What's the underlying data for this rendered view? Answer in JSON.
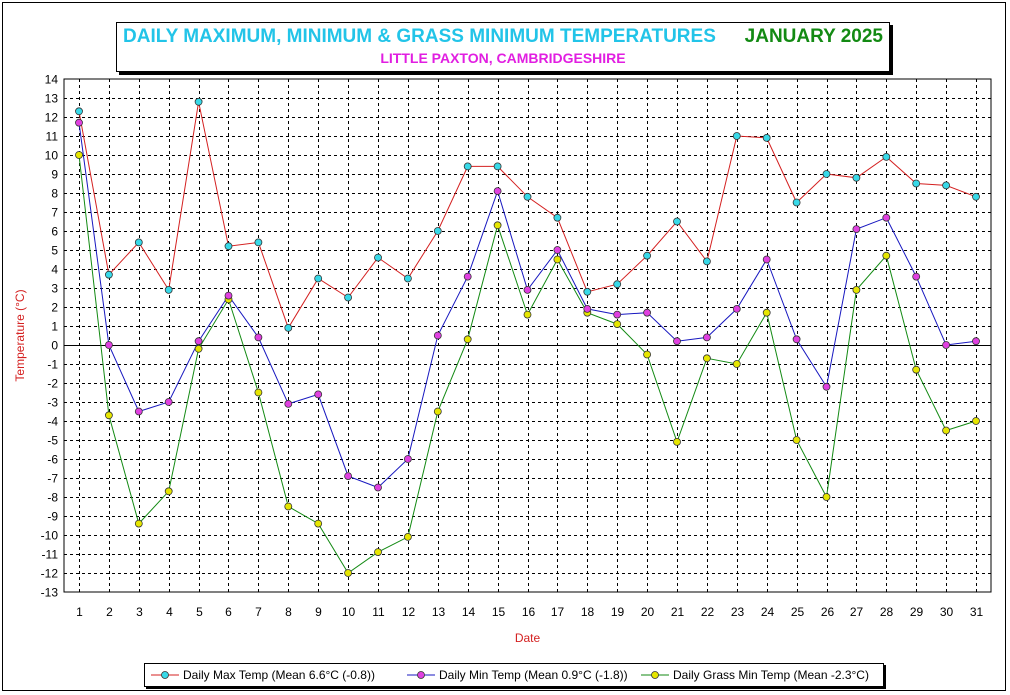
{
  "title": {
    "main": "DAILY MAXIMUM, MINIMUM & GRASS MINIMUM TEMPERATURES",
    "month": "JANUARY 2025",
    "subtitle": "LITTLE PAXTON, CAMBRIDGESHIRE"
  },
  "colors": {
    "max_line": "#d42020",
    "max_marker": "#38d9e8",
    "min_line": "#1818c0",
    "min_marker": "#e040e0",
    "grass_line": "#138a13",
    "grass_marker": "#e6e600",
    "axis_label": "#d42020"
  },
  "legend": {
    "max_label": "Daily Max Temp (Mean 6.6°C (-0.8))",
    "min_label": "Daily Min Temp (Mean 0.9°C (-1.8))",
    "grass_label": "Daily Grass Min Temp (Mean -2.3°C)"
  },
  "chart_data": {
    "type": "line",
    "xlabel": "Date",
    "ylabel": "Temperature (°C)",
    "ylim": [
      -13,
      14
    ],
    "xlim": [
      0.5,
      31.5
    ],
    "grid": true,
    "legend_position": "bottom",
    "x": [
      1,
      2,
      3,
      4,
      5,
      6,
      7,
      8,
      9,
      10,
      11,
      12,
      13,
      14,
      15,
      16,
      17,
      18,
      19,
      20,
      21,
      22,
      23,
      24,
      25,
      26,
      27,
      28,
      29,
      30,
      31
    ],
    "series": [
      {
        "name": "Daily Max Temp (Mean 6.6°C (-0.8))",
        "values": [
          12.3,
          3.7,
          5.4,
          2.9,
          12.8,
          5.2,
          5.4,
          0.9,
          3.5,
          2.5,
          4.6,
          3.5,
          6.0,
          9.4,
          9.4,
          7.8,
          6.7,
          2.8,
          3.2,
          4.7,
          6.5,
          4.4,
          11.0,
          10.9,
          7.5,
          9.0,
          8.8,
          9.9,
          8.5,
          8.4,
          7.8
        ]
      },
      {
        "name": "Daily Min Temp (Mean 0.9°C (-1.8))",
        "values": [
          11.7,
          0.0,
          -3.5,
          -3.0,
          0.2,
          2.6,
          0.4,
          -3.1,
          -2.6,
          -6.9,
          -7.5,
          -6.0,
          0.5,
          3.6,
          8.1,
          2.9,
          5.0,
          1.9,
          1.6,
          1.7,
          0.2,
          0.4,
          1.9,
          4.5,
          0.3,
          -2.2,
          6.1,
          6.7,
          3.6,
          0.0,
          0.2
        ]
      },
      {
        "name": "Daily Grass Min Temp (Mean -2.3°C)",
        "values": [
          10.0,
          -3.7,
          -9.4,
          -7.7,
          -0.2,
          2.4,
          -2.5,
          -8.5,
          -9.4,
          -12.0,
          -10.9,
          -10.1,
          -3.5,
          0.3,
          6.3,
          1.6,
          4.5,
          1.7,
          1.1,
          -0.5,
          -5.1,
          -0.7,
          -1.0,
          1.7,
          -5.0,
          -8.0,
          2.9,
          4.7,
          -1.3,
          -4.5,
          -4.0
        ]
      }
    ]
  }
}
